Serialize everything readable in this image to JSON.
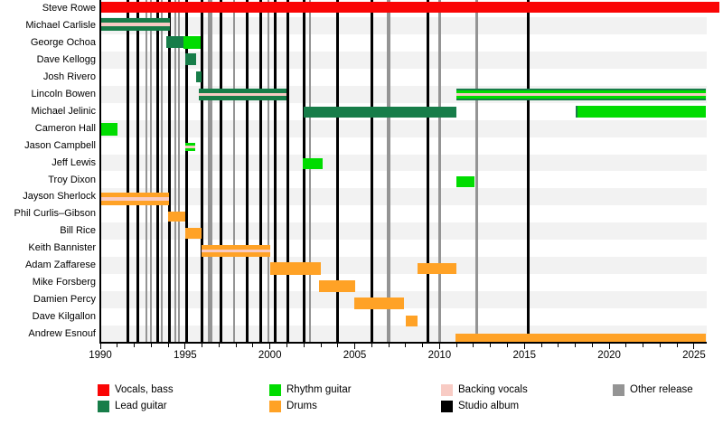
{
  "chart_data": {
    "type": "timeline",
    "subject": "Band members timeline (Gantt-style, roles over years)",
    "x_axis": {
      "start_year": 1990,
      "end_year": 2025.7,
      "major_tick_years": [
        1990,
        1995,
        2000,
        2005,
        2010,
        2015,
        2020,
        2025
      ],
      "tick_labels": [
        "1990",
        "1995",
        "2000",
        "2005",
        "2010",
        "2015",
        "2020",
        "2025"
      ],
      "minor_tick_every_years": 1
    },
    "colors": {
      "vocals_bass": "#fa0505",
      "lead_guitar": "#177d49",
      "rhythm_guitar": "#00dc00",
      "drums": "#ffa226",
      "backing_vocals": "#f8cbc4",
      "studio_album": "#000000",
      "other_release": "#949494",
      "row_stripe": "#f2f2f2",
      "axis": "#000000"
    },
    "members": [
      {
        "name": "Steve Rowe",
        "bars": [
          {
            "from": 1990.0,
            "to": 2026.5,
            "layers": [
              [
                "vocals_bass",
                12
              ]
            ]
          }
        ]
      },
      {
        "name": "Michael Carlisle",
        "bars": [
          {
            "from": 1990.0,
            "to": 1994.1,
            "layers": [
              [
                "lead_guitar",
                5
              ],
              [
                "backing_vocals",
                4
              ],
              [
                "lead_guitar",
                5
              ]
            ]
          }
        ]
      },
      {
        "name": "George Ochoa",
        "bars": [
          {
            "from": 1993.9,
            "to": 1994.92,
            "layers": [
              [
                "lead_guitar",
                13
              ]
            ]
          },
          {
            "from": 1994.92,
            "to": 1995.93,
            "layers": [
              [
                "rhythm_guitar",
                14
              ]
            ]
          }
        ]
      },
      {
        "name": "Dave Kellogg",
        "bars": [
          {
            "from": 1995.0,
            "to": 1995.63,
            "layers": [
              [
                "lead_guitar",
                13
              ]
            ]
          }
        ]
      },
      {
        "name": "Josh Rivero",
        "bars": [
          {
            "from": 1995.63,
            "to": 1995.95,
            "layers": [
              [
                "lead_guitar",
                12
              ]
            ]
          }
        ]
      },
      {
        "name": "Lincoln Bowen",
        "bars": [
          {
            "from": 1995.8,
            "to": 2001.0,
            "layers": [
              [
                "lead_guitar",
                5
              ],
              [
                "backing_vocals",
                3
              ],
              [
                "lead_guitar",
                5
              ]
            ]
          },
          {
            "from": 2011.0,
            "to": 2025.7,
            "layers": [
              [
                "lead_guitar",
                2
              ],
              [
                "rhythm_guitar",
                3
              ],
              [
                "backing_vocals",
                3
              ],
              [
                "rhythm_guitar",
                3
              ],
              [
                "lead_guitar",
                2
              ]
            ]
          }
        ]
      },
      {
        "name": "Michael Jelinic",
        "bars": [
          {
            "from": 2002.0,
            "to": 2011.0,
            "layers": [
              [
                "lead_guitar",
                12
              ]
            ]
          },
          {
            "from": 2018.0,
            "to": 2025.7,
            "layers": [
              [
                "rhythm_guitar",
                13
              ]
            ],
            "edge_left": "lead_guitar"
          }
        ]
      },
      {
        "name": "Cameron Hall",
        "bars": [
          {
            "from": 1990.05,
            "to": 1991.0,
            "layers": [
              [
                "rhythm_guitar",
                14
              ]
            ]
          }
        ]
      },
      {
        "name": "Jason Campbell",
        "bars": [
          {
            "from": 1995.0,
            "to": 1995.6,
            "layers": [
              [
                "rhythm_guitar",
                3
              ],
              [
                "backing_vocals",
                3
              ],
              [
                "rhythm_guitar",
                3
              ]
            ]
          }
        ]
      },
      {
        "name": "Jeff Lewis",
        "bars": [
          {
            "from": 2001.95,
            "to": 2003.1,
            "layers": [
              [
                "rhythm_guitar",
                12
              ]
            ]
          }
        ]
      },
      {
        "name": "Troy Dixon",
        "bars": [
          {
            "from": 2011.0,
            "to": 2012.05,
            "layers": [
              [
                "rhythm_guitar",
                12
              ]
            ]
          }
        ]
      },
      {
        "name": "Jayson Sherlock",
        "bars": [
          {
            "from": 1990.0,
            "to": 1994.05,
            "layers": [
              [
                "drums",
                5
              ],
              [
                "backing_vocals",
                4
              ],
              [
                "drums",
                5
              ]
            ]
          }
        ]
      },
      {
        "name": "Phil Curlis–Gibson",
        "bars": [
          {
            "from": 1994.0,
            "to": 1995.0,
            "layers": [
              [
                "drums",
                11
              ]
            ]
          }
        ]
      },
      {
        "name": "Bill Rice",
        "bars": [
          {
            "from": 1995.0,
            "to": 1995.98,
            "layers": [
              [
                "drums",
                12
              ]
            ]
          }
        ]
      },
      {
        "name": "Keith Bannister",
        "bars": [
          {
            "from": 1995.95,
            "to": 2000.0,
            "layers": [
              [
                "drums",
                5
              ],
              [
                "backing_vocals",
                3
              ],
              [
                "drums",
                5
              ]
            ]
          }
        ]
      },
      {
        "name": "Adam Zaffarese",
        "bars": [
          {
            "from": 2000.0,
            "to": 2003.0,
            "layers": [
              [
                "drums",
                14
              ]
            ]
          },
          {
            "from": 2008.7,
            "to": 2011.0,
            "layers": [
              [
                "drums",
                12
              ]
            ]
          }
        ]
      },
      {
        "name": "Mike Forsberg",
        "bars": [
          {
            "from": 2002.9,
            "to": 2005.05,
            "layers": [
              [
                "drums",
                13
              ]
            ]
          }
        ]
      },
      {
        "name": "Damien Percy",
        "bars": [
          {
            "from": 2004.95,
            "to": 2007.9,
            "layers": [
              [
                "drums",
                13
              ]
            ]
          }
        ]
      },
      {
        "name": "Dave Kilgallon",
        "bars": [
          {
            "from": 2008.0,
            "to": 2008.7,
            "layers": [
              [
                "drums",
                12
              ]
            ]
          }
        ]
      },
      {
        "name": "Andrew Esnouf",
        "bars": [
          {
            "from": 2010.95,
            "to": 2025.7,
            "layers": [
              [
                "drums",
                9
              ]
            ]
          }
        ]
      }
    ],
    "events": {
      "studio_album_years": [
        1991.6,
        1992.2,
        1993.4,
        1994.05,
        1995.1,
        1996.0,
        1997.1,
        1998.65,
        1999.45,
        2000.3,
        2001.05,
        2002.0,
        2004.0,
        2006.0,
        2009.3,
        2015.2
      ],
      "other_release_years": [
        [
          1992.7,
          2
        ],
        [
          1993.0,
          2
        ],
        [
          1993.6,
          2
        ],
        [
          1994.42,
          2
        ],
        [
          1994.64,
          2
        ],
        [
          1996.45,
          5
        ],
        [
          1997.9,
          2
        ],
        [
          1999.9,
          2
        ],
        [
          2002.35,
          2
        ],
        [
          2007.0,
          4
        ],
        [
          2010.0,
          3
        ],
        [
          2012.2,
          3
        ]
      ]
    },
    "legend": [
      {
        "label": "Vocals, bass",
        "role": "vocals_bass"
      },
      {
        "label": "Lead guitar",
        "role": "lead_guitar"
      },
      {
        "label": "Rhythm guitar",
        "role": "rhythm_guitar"
      },
      {
        "label": "Drums",
        "role": "drums"
      },
      {
        "label": "Backing vocals",
        "role": "backing_vocals"
      },
      {
        "label": "Studio album",
        "role": "studio_album"
      },
      {
        "label": "Other release",
        "role": "other_release"
      }
    ]
  }
}
